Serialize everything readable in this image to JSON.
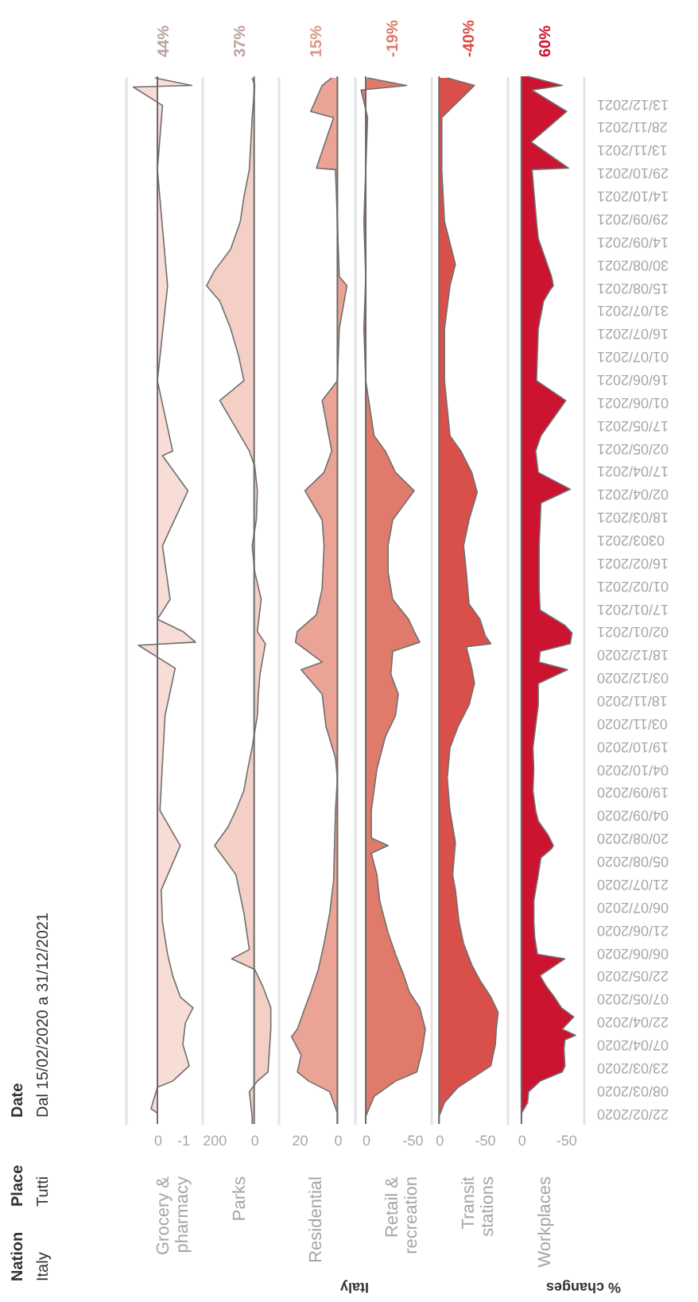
{
  "chart_data": [
    {
      "type": "area",
      "orientation": "horizontal",
      "title": "Grocery & pharmacy",
      "color": "#f8dcd6",
      "ylim": [
        "2020-02-15",
        "2021-12-31"
      ],
      "xlim": [
        1.25,
        -1.75
      ],
      "xticks": [
        0,
        -1
      ],
      "tick_labels": "x",
      "ref_lines": [
        {
          "axis": "x",
          "value": 0,
          "color": "#6b6b6b"
        }
      ],
      "annotations": [
        "Nation",
        "Italy",
        "Place",
        "Tutti",
        "Date",
        "Dal 15/02/2020 a 31/12/2021",
        "Italy",
        "44%"
      ],
      "x": [
        "2020-02-15",
        "2020-02-22",
        "2020-02-25",
        "2020-03-10",
        "2020-03-14",
        "2020-03-24",
        "2020-04-07",
        "2020-04-21",
        "2020-05-01",
        "2020-05-08",
        "2020-05-22",
        "2020-06-05",
        "2020-06-26",
        "2020-07-17",
        "2020-08-15",
        "2020-09-07",
        "2020-11-08",
        "2020-12-09",
        "2020-12-24",
        "2020-12-26",
        "2021-01-02",
        "2021-01-10",
        "2021-01-23",
        "2021-02-27",
        "2021-04-04",
        "2021-04-27",
        "2021-04-30",
        "2021-06-15",
        "2021-08-16",
        "2021-10-31",
        "2021-12-12",
        "2021-12-24",
        "2021-12-25",
        "2021-12-30"
      ],
      "values": [
        0,
        0,
        0.25,
        0,
        -0.6,
        -1.25,
        -1,
        -1.1,
        -1.4,
        -0.9,
        -0.6,
        -0.4,
        -0.2,
        -0.15,
        -0.9,
        -0.1,
        -0.3,
        -0.7,
        0.75,
        -1.5,
        -1,
        0,
        -0.5,
        -0.2,
        -1.2,
        -0.2,
        -0.6,
        0,
        -0.4,
        0,
        -0.2,
        0.95,
        -1.35,
        0.1
      ]
    },
    {
      "type": "area",
      "orientation": "horizontal",
      "title": "Parks",
      "color": "#f3cfc6",
      "ylim": [
        "2020-02-15",
        "2021-12-31"
      ],
      "xlim": [
        260,
        -120
      ],
      "xticks": [
        200,
        0
      ],
      "tick_labels": "x",
      "ref_lines": [
        {
          "axis": "x",
          "value": 0,
          "color": "#6b6b6b"
        }
      ],
      "annotations": [
        "37%"
      ],
      "x": [
        "2020-02-15",
        "2020-02-20",
        "2020-03-07",
        "2020-03-14",
        "2020-03-20",
        "2020-04-17",
        "2020-05-01",
        "2020-05-15",
        "2020-05-26",
        "2020-06-02",
        "2020-06-08",
        "2020-07-02",
        "2020-07-27",
        "2020-08-15",
        "2020-08-27",
        "2020-09-07",
        "2020-09-20",
        "2020-10-04",
        "2020-10-18",
        "2020-11-08",
        "2020-11-22",
        "2020-12-05",
        "2020-12-25",
        "2021-01-02",
        "2021-01-23",
        "2021-02-10",
        "2021-02-27",
        "2021-03-16",
        "2021-04-04",
        "2021-04-20",
        "2021-04-30",
        "2021-06-02",
        "2021-06-15",
        "2021-07-01",
        "2021-07-19",
        "2021-08-06",
        "2021-08-16",
        "2021-08-26",
        "2021-09-09",
        "2021-09-27",
        "2021-10-13",
        "2021-10-31",
        "2021-12-04",
        "2021-12-25",
        "2021-12-30"
      ],
      "values": [
        10,
        10,
        24,
        -16,
        -69,
        -83,
        -83,
        -43,
        -3,
        112,
        24,
        51,
        91,
        197,
        131,
        91,
        51,
        32,
        10,
        -16,
        -21,
        -29,
        -56,
        -16,
        -35,
        -3,
        10,
        -11,
        -16,
        -3,
        24,
        171,
        51,
        77,
        117,
        171,
        237,
        197,
        117,
        69,
        51,
        24,
        10,
        -3,
        10
      ]
    },
    {
      "type": "area",
      "orientation": "horizontal",
      "title": "Residential",
      "color": "#eaa394",
      "ylim": [
        "2020-02-15",
        "2021-12-31"
      ],
      "xlim": [
        31,
        -9
      ],
      "xticks": [
        20,
        0
      ],
      "tick_labels": "x",
      "ref_lines": [
        {
          "axis": "x",
          "value": 0,
          "color": "#6b6b6b"
        }
      ],
      "annotations": [
        "15%"
      ],
      "x": [
        "2020-02-15",
        "2020-02-22",
        "2020-03-07",
        "2020-03-14",
        "2020-03-20",
        "2020-03-31",
        "2020-04-12",
        "2020-04-17",
        "2020-05-01",
        "2020-05-11",
        "2020-05-26",
        "2020-06-12",
        "2020-07-02",
        "2020-07-23",
        "2020-09-07",
        "2020-09-28",
        "2020-10-11",
        "2020-11-01",
        "2020-11-22",
        "2020-12-08",
        "2020-12-13",
        "2020-12-26",
        "2021-01-02",
        "2021-01-13",
        "2021-01-30",
        "2021-02-27",
        "2021-03-16",
        "2021-04-04",
        "2021-04-16",
        "2021-04-30",
        "2021-06-02",
        "2021-06-15",
        "2021-07-19",
        "2021-08-16",
        "2021-08-22",
        "2021-09-27",
        "2021-10-31",
        "2021-11-01",
        "2021-12-04",
        "2021-12-08",
        "2021-12-25",
        "2021-12-30"
      ],
      "values": [
        0,
        0,
        4,
        15,
        21,
        19,
        24,
        21,
        17,
        14,
        10,
        7,
        4,
        2,
        1,
        0,
        1,
        6,
        8,
        19,
        8,
        22,
        21,
        11,
        8,
        7,
        8,
        17,
        7,
        3,
        8,
        0,
        -1,
        -5,
        -1,
        0,
        1,
        11,
        2,
        14,
        8,
        3
      ]
    },
    {
      "type": "area",
      "orientation": "horizontal",
      "title": "Retail & recreation",
      "color": "#e07b6b",
      "ylim": [
        "2020-02-15",
        "2021-12-31"
      ],
      "xlim": [
        12,
        -70
      ],
      "xticks": [
        0,
        -50
      ],
      "tick_labels": "x",
      "ref_lines": [
        {
          "axis": "x",
          "value": 0,
          "color": "#6b6b6b"
        }
      ],
      "annotations": [
        "-19%"
      ],
      "x": [
        "2020-02-15",
        "2020-02-20",
        "2020-03-04",
        "2020-03-14",
        "2020-03-20",
        "2020-04-04",
        "2020-04-17",
        "2020-05-01",
        "2020-05-11",
        "2020-05-22",
        "2020-06-05",
        "2020-06-19",
        "2020-07-10",
        "2020-07-27",
        "2020-08-10",
        "2020-08-15",
        "2020-08-20",
        "2020-09-07",
        "2020-10-04",
        "2020-10-25",
        "2020-11-08",
        "2020-11-22",
        "2020-12-05",
        "2020-12-20",
        "2020-12-26",
        "2021-01-02",
        "2021-01-10",
        "2021-01-23",
        "2021-02-10",
        "2021-02-27",
        "2021-03-16",
        "2021-04-04",
        "2021-04-16",
        "2021-04-30",
        "2021-05-10",
        "2021-06-15",
        "2021-07-19",
        "2021-08-22",
        "2021-09-27",
        "2021-10-31",
        "2021-12-04",
        "2021-12-22",
        "2021-12-25",
        "2021-12-30"
      ],
      "values": [
        0,
        0,
        -9,
        -32,
        -55,
        -61,
        -64,
        -58,
        -47,
        -41,
        -32,
        -24,
        -15,
        -12,
        -6,
        -24,
        -6,
        -6,
        -12,
        -21,
        -32,
        -35,
        -27,
        -29,
        -58,
        -52,
        -46,
        -29,
        -24,
        -24,
        -29,
        -52,
        -32,
        -21,
        -9,
        0,
        2,
        0,
        2,
        0,
        -2,
        5,
        -44,
        -2
      ]
    },
    {
      "type": "area",
      "orientation": "horizontal",
      "title": "Transit stations",
      "color": "#d9504a",
      "ylim": [
        "2020-02-15",
        "2021-12-31"
      ],
      "xlim": [
        9,
        -75
      ],
      "xticks": [
        0,
        -50
      ],
      "tick_labels": "x",
      "ref_lines": [
        {
          "axis": "x",
          "value": 0,
          "color": "#6b6b6b"
        }
      ],
      "annotations": [
        "-40%"
      ],
      "x": [
        "2020-02-15",
        "2020-02-20",
        "2020-02-29",
        "2020-03-10",
        "2020-03-17",
        "2020-03-24",
        "2020-04-07",
        "2020-04-17",
        "2020-04-28",
        "2020-05-08",
        "2020-05-19",
        "2020-05-29",
        "2020-06-12",
        "2020-06-26",
        "2020-07-17",
        "2020-07-27",
        "2020-08-17",
        "2020-09-07",
        "2020-09-28",
        "2020-10-18",
        "2020-11-01",
        "2020-11-15",
        "2020-11-29",
        "2020-12-09",
        "2020-12-23",
        "2020-12-25",
        "2020-12-30",
        "2021-01-10",
        "2021-01-20",
        "2021-02-10",
        "2021-02-27",
        "2021-03-16",
        "2021-04-03",
        "2021-04-16",
        "2021-04-30",
        "2021-05-10",
        "2021-06-15",
        "2021-07-19",
        "2021-08-16",
        "2021-08-30",
        "2021-09-27",
        "2021-10-31",
        "2021-12-04",
        "2021-12-25",
        "2021-12-30"
      ],
      "values": [
        0,
        0,
        -6,
        -21,
        -39,
        -57,
        -62,
        -63,
        -65,
        -57,
        -45,
        -36,
        -27,
        -22,
        -18,
        -15,
        -18,
        -12,
        -9,
        -12,
        -21,
        -33,
        -39,
        -36,
        -30,
        -57,
        -51,
        -45,
        -33,
        -30,
        -27,
        -33,
        -42,
        -36,
        -24,
        -12,
        -6,
        -6,
        -12,
        -18,
        -6,
        -3,
        -3,
        -39,
        -9
      ]
    },
    {
      "type": "area",
      "orientation": "horizontal",
      "title": "Workplaces",
      "color": "#cc1330",
      "ylim": [
        "2020-02-15",
        "2021-12-31"
      ],
      "xlim": [
        16,
        -70
      ],
      "xticks": [
        0,
        -50
      ],
      "ref_lines": [
        {
          "axis": "x",
          "value": 0,
          "color": "#6b6b6b"
        }
      ],
      "annotations": [
        "% changes",
        "60%"
      ],
      "yticks": [
        {
          "value": "2020-02-22",
          "label": "22/02/2020"
        },
        {
          "value": "2020-03-08",
          "label": "08/03/2020"
        },
        {
          "value": "2020-03-23",
          "label": "23/03/2020"
        },
        {
          "value": "2020-04-07",
          "label": "07/04/2020"
        },
        {
          "value": "2020-04-22",
          "label": "22/04/2020"
        },
        {
          "value": "2020-05-07",
          "label": "07/05/2020"
        },
        {
          "value": "2020-05-22",
          "label": "22/05/2020"
        },
        {
          "value": "2020-06-06",
          "label": "06/06/2020"
        },
        {
          "value": "2020-06-21",
          "label": "21/06/2020"
        },
        {
          "value": "2020-07-06",
          "label": "06/07/2020"
        },
        {
          "value": "2020-07-21",
          "label": "21/07/2020"
        },
        {
          "value": "2020-08-05",
          "label": "05/08/2020"
        },
        {
          "value": "2020-08-20",
          "label": "20/08/2020"
        },
        {
          "value": "2020-09-04",
          "label": "04/09/2020"
        },
        {
          "value": "2020-09-19",
          "label": "19/09/2020"
        },
        {
          "value": "2020-10-04",
          "label": "04/10/2020"
        },
        {
          "value": "2020-10-19",
          "label": "19/10/2020"
        },
        {
          "value": "2020-11-03",
          "label": "03/11/2020"
        },
        {
          "value": "2020-11-18",
          "label": "18/11/2020"
        },
        {
          "value": "2020-12-03",
          "label": "03/12/2020"
        },
        {
          "value": "2020-12-18",
          "label": "18/12/2020"
        },
        {
          "value": "2021-01-02",
          "label": "02/01/2021"
        },
        {
          "value": "2021-01-17",
          "label": "17/01/2021"
        },
        {
          "value": "2021-02-01",
          "label": "01/02/2021"
        },
        {
          "value": "2021-02-16",
          "label": "16/02/2021"
        },
        {
          "value": "2021-03-03",
          "label": "0303/2021"
        },
        {
          "value": "2021-03-18",
          "label": "18/03/2021"
        },
        {
          "value": "2021-04-02",
          "label": "02/04/2021"
        },
        {
          "value": "2021-04-17",
          "label": "17/04/2021"
        },
        {
          "value": "2021-05-02",
          "label": "02/05/2021"
        },
        {
          "value": "2021-05-17",
          "label": "17/05/2021"
        },
        {
          "value": "2021-06-01",
          "label": "01/06/2021"
        },
        {
          "value": "2021-06-16",
          "label": "16/06/2021"
        },
        {
          "value": "2021-07-01",
          "label": "01/07/2021"
        },
        {
          "value": "2021-07-16",
          "label": "16/07/2021"
        },
        {
          "value": "2021-07-31",
          "label": "31/07/2021"
        },
        {
          "value": "2021-08-15",
          "label": "15/08/2021"
        },
        {
          "value": "2021-08-30",
          "label": "30/08/2021"
        },
        {
          "value": "2021-09-14",
          "label": "14/09/2021"
        },
        {
          "value": "2021-09-29",
          "label": "29/09/2021"
        },
        {
          "value": "2021-10-14",
          "label": "14/10/2021"
        },
        {
          "value": "2021-10-29",
          "label": "29/10/2021"
        },
        {
          "value": "2021-11-13",
          "label": "13/11/2021"
        },
        {
          "value": "2021-11-28",
          "label": "28/11/2021"
        },
        {
          "value": "2021-12-13",
          "label": "13/12/2021"
        }
      ],
      "x": [
        "2020-02-15",
        "2020-02-22",
        "2020-02-29",
        "2020-03-07",
        "2020-03-14",
        "2020-03-20",
        "2020-03-24",
        "2020-04-04",
        "2020-04-10",
        "2020-04-13",
        "2020-04-17",
        "2020-04-25",
        "2020-05-01",
        "2020-05-08",
        "2020-05-15",
        "2020-05-22",
        "2020-06-02",
        "2020-06-05",
        "2020-06-16",
        "2020-06-26",
        "2020-07-10",
        "2020-07-27",
        "2020-08-07",
        "2020-08-13",
        "2020-08-15",
        "2020-08-22",
        "2020-08-31",
        "2020-09-07",
        "2020-09-20",
        "2020-10-04",
        "2020-10-18",
        "2020-11-01",
        "2020-11-15",
        "2020-11-29",
        "2020-12-08",
        "2020-12-13",
        "2020-12-20",
        "2020-12-25",
        "2021-01-01",
        "2021-01-06",
        "2021-01-16",
        "2021-01-30",
        "2021-02-13",
        "2021-02-27",
        "2021-03-13",
        "2021-03-27",
        "2021-04-05",
        "2021-04-16",
        "2021-04-30",
        "2021-05-10",
        "2021-06-02",
        "2021-06-15",
        "2021-07-19",
        "2021-08-06",
        "2021-08-13",
        "2021-08-16",
        "2021-08-22",
        "2021-09-06",
        "2021-09-16",
        "2021-09-27",
        "2021-10-31",
        "2021-11-01",
        "2021-11-18",
        "2021-12-08",
        "2021-12-22",
        "2021-12-25",
        "2021-12-31"
      ],
      "values": [
        0,
        0,
        -7,
        -8,
        -21,
        -46,
        -49,
        -48,
        -49,
        -61,
        -46,
        -59,
        -45,
        -37,
        -28,
        -21,
        -49,
        -18,
        -15,
        -14,
        -14,
        -19,
        -22,
        -34,
        -36,
        -30,
        -19,
        -16,
        -13,
        -14,
        -13,
        -16,
        -19,
        -19,
        -52,
        -20,
        -21,
        -55,
        -57,
        -49,
        -21,
        -20,
        -20,
        -20,
        -21,
        -22,
        -55,
        -19,
        -16,
        -22,
        -50,
        -17,
        -19,
        -25,
        -32,
        -36,
        -34,
        -25,
        -19,
        -17,
        -12,
        -53,
        -11,
        -51,
        -12,
        -46,
        -7
      ]
    }
  ]
}
